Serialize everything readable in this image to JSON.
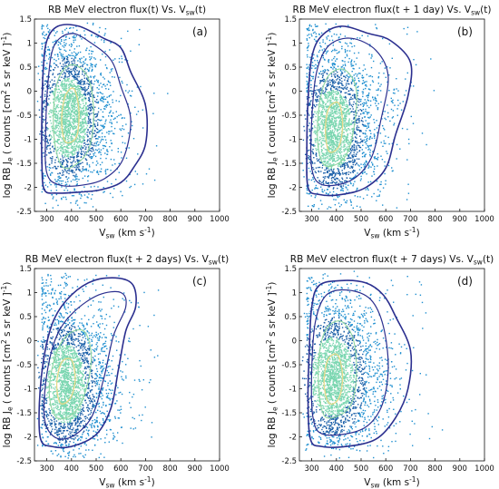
{
  "chart_data": [
    {
      "type": "scatter",
      "panel_label": "(a)",
      "title": {
        "main": "RB MeV electron flux(t) Vs. V",
        "sub": "sw",
        "tail": "(t)"
      },
      "xlabel": {
        "main": "V",
        "sub": "sw",
        "tail": " (km s",
        "sup": "-1",
        "close": ")"
      },
      "ylabel": {
        "pre": "log RB J",
        "sub": "e",
        "mid": " ( counts [cm",
        "sup1": "2",
        "mid2": " s sr keV ]",
        "sup2": "-1",
        "close": ")"
      },
      "xlim": [
        250,
        1000
      ],
      "ylim": [
        -2.5,
        1.5
      ],
      "xticks": [
        300,
        400,
        500,
        600,
        700,
        800,
        900,
        1000
      ],
      "yticks": [
        -2.5,
        -2,
        -1.5,
        -1,
        -0.5,
        0,
        0.5,
        1,
        1.5
      ],
      "density": {
        "peak_x": 385,
        "peak_y": -0.55,
        "spread_x": 75,
        "spread_y": 0.75
      },
      "contours": {
        "outer": [
          [
            340,
            -2.12
          ],
          [
            290,
            -2.05
          ],
          [
            280,
            -1.5
          ],
          [
            280,
            -0.5
          ],
          [
            285,
            0.4
          ],
          [
            300,
            1.05
          ],
          [
            345,
            1.35
          ],
          [
            430,
            1.35
          ],
          [
            530,
            1.1
          ],
          [
            600,
            0.9
          ],
          [
            640,
            0.4
          ],
          [
            700,
            -0.3
          ],
          [
            700,
            -1.1
          ],
          [
            650,
            -1.6
          ],
          [
            600,
            -1.9
          ],
          [
            520,
            -2.05
          ],
          [
            430,
            -2.1
          ]
        ],
        "mid": [
          [
            350,
            -1.95
          ],
          [
            300,
            -1.7
          ],
          [
            295,
            -0.9
          ],
          [
            305,
            0.2
          ],
          [
            330,
            0.95
          ],
          [
            400,
            1.2
          ],
          [
            480,
            1.0
          ],
          [
            560,
            0.65
          ],
          [
            600,
            0.1
          ],
          [
            640,
            -0.6
          ],
          [
            610,
            -1.4
          ],
          [
            540,
            -1.8
          ],
          [
            450,
            -1.95
          ]
        ],
        "inner": [
          [
            360,
            -1.55
          ],
          [
            330,
            -1.0
          ],
          [
            330,
            -0.2
          ],
          [
            355,
            0.35
          ],
          [
            410,
            0.55
          ],
          [
            470,
            0.25
          ],
          [
            490,
            -0.5
          ],
          [
            470,
            -1.2
          ],
          [
            410,
            -1.55
          ]
        ],
        "core": [
          [
            375,
            -1.05
          ],
          [
            360,
            -0.6
          ],
          [
            375,
            -0.1
          ],
          [
            410,
            0.05
          ],
          [
            430,
            -0.4
          ],
          [
            420,
            -0.95
          ]
        ]
      }
    },
    {
      "type": "scatter",
      "panel_label": "(b)",
      "title": {
        "main": "RB MeV electron flux(t + 1 day) Vs. V",
        "sub": "sw",
        "tail": "(t)"
      },
      "xlabel": {
        "main": "V",
        "sub": "sw",
        "tail": " (km s",
        "sup": "-1",
        "close": ")"
      },
      "ylabel": {
        "pre": "log RB J",
        "sub": "e",
        "mid": " ( counts [cm",
        "sup1": "2",
        "mid2": " s sr keV ]",
        "sup2": "-1",
        "close": ")"
      },
      "xlim": [
        250,
        1000
      ],
      "ylim": [
        -2.5,
        1.5
      ],
      "xticks": [
        300,
        400,
        500,
        600,
        700,
        800,
        900,
        1000
      ],
      "yticks": [
        -2.5,
        -2,
        -1.5,
        -1,
        -0.5,
        0,
        0.5,
        1,
        1.5
      ],
      "density": {
        "peak_x": 385,
        "peak_y": -0.8,
        "spread_x": 75,
        "spread_y": 0.75
      },
      "contours": {
        "outer": [
          [
            330,
            -2.15
          ],
          [
            285,
            -2.0
          ],
          [
            280,
            -1.2
          ],
          [
            285,
            -0.2
          ],
          [
            300,
            0.7
          ],
          [
            340,
            1.15
          ],
          [
            420,
            1.35
          ],
          [
            530,
            1.2
          ],
          [
            620,
            1.05
          ],
          [
            700,
            0.6
          ],
          [
            690,
            -0.1
          ],
          [
            640,
            -0.9
          ],
          [
            600,
            -1.6
          ],
          [
            520,
            -2.0
          ],
          [
            420,
            -2.15
          ]
        ],
        "mid": [
          [
            345,
            -1.95
          ],
          [
            300,
            -1.6
          ],
          [
            300,
            -0.6
          ],
          [
            320,
            0.4
          ],
          [
            370,
            0.95
          ],
          [
            460,
            1.1
          ],
          [
            560,
            0.85
          ],
          [
            610,
            0.3
          ],
          [
            580,
            -0.6
          ],
          [
            540,
            -1.4
          ],
          [
            460,
            -1.85
          ]
        ],
        "inner": [
          [
            355,
            -1.55
          ],
          [
            325,
            -1.1
          ],
          [
            330,
            -0.3
          ],
          [
            365,
            0.3
          ],
          [
            430,
            0.45
          ],
          [
            480,
            0.05
          ],
          [
            470,
            -0.8
          ],
          [
            430,
            -1.4
          ]
        ],
        "core": [
          [
            370,
            -1.25
          ],
          [
            355,
            -0.8
          ],
          [
            370,
            -0.35
          ],
          [
            410,
            -0.25
          ],
          [
            425,
            -0.7
          ],
          [
            410,
            -1.15
          ]
        ]
      }
    },
    {
      "type": "scatter",
      "panel_label": "(c)",
      "title": {
        "main": "RB MeV electron flux(t + 2 days) Vs. V",
        "sub": "sw",
        "tail": "(t)"
      },
      "xlabel": {
        "main": "V",
        "sub": "sw",
        "tail": " (km s",
        "sup": "-1",
        "close": ")"
      },
      "ylabel": {
        "pre": "log RB J",
        "sub": "e",
        "mid": " ( counts [cm",
        "sup1": "2",
        "mid2": " s sr keV ]",
        "sup2": "-1",
        "close": ")"
      },
      "xlim": [
        250,
        1000
      ],
      "ylim": [
        -2.5,
        1.5
      ],
      "xticks": [
        300,
        400,
        500,
        600,
        700,
        800,
        900,
        1000
      ],
      "yticks": [
        -2.5,
        -2,
        -1.5,
        -1,
        -0.5,
        0,
        0.5,
        1,
        1.5
      ],
      "density": {
        "peak_x": 375,
        "peak_y": -0.9,
        "spread_x": 75,
        "spread_y": 0.75
      },
      "contours": {
        "outer": [
          [
            320,
            -2.2
          ],
          [
            275,
            -2.05
          ],
          [
            270,
            -1.3
          ],
          [
            290,
            -0.3
          ],
          [
            330,
            0.45
          ],
          [
            400,
            0.95
          ],
          [
            490,
            1.25
          ],
          [
            590,
            1.3
          ],
          [
            650,
            1.15
          ],
          [
            660,
            0.7
          ],
          [
            620,
            0.2
          ],
          [
            590,
            -0.6
          ],
          [
            560,
            -1.4
          ],
          [
            500,
            -1.95
          ],
          [
            400,
            -2.2
          ]
        ],
        "mid": [
          [
            330,
            -2.0
          ],
          [
            290,
            -1.6
          ],
          [
            300,
            -0.7
          ],
          [
            340,
            0.1
          ],
          [
            410,
            0.6
          ],
          [
            510,
            0.95
          ],
          [
            600,
            1.0
          ],
          [
            620,
            0.7
          ],
          [
            570,
            0.1
          ],
          [
            530,
            -0.8
          ],
          [
            480,
            -1.6
          ],
          [
            400,
            -2.0
          ]
        ],
        "inner": [
          [
            340,
            -1.6
          ],
          [
            310,
            -1.1
          ],
          [
            330,
            -0.4
          ],
          [
            380,
            0.1
          ],
          [
            450,
            0.2
          ],
          [
            480,
            -0.3
          ],
          [
            460,
            -1.0
          ],
          [
            410,
            -1.5
          ]
        ],
        "core": [
          [
            355,
            -1.3
          ],
          [
            340,
            -0.9
          ],
          [
            360,
            -0.45
          ],
          [
            400,
            -0.4
          ],
          [
            415,
            -0.8
          ],
          [
            395,
            -1.2
          ]
        ]
      }
    },
    {
      "type": "scatter",
      "panel_label": "(d)",
      "title": {
        "main": "RB MeV electron flux(t + 7 days) Vs. V",
        "sub": "sw",
        "tail": "(t)"
      },
      "xlabel": {
        "main": "V",
        "sub": "sw",
        "tail": " (km s",
        "sup": "-1",
        "close": ")"
      },
      "ylabel": {
        "pre": "log RB J",
        "sub": "e",
        "mid": " ( counts [cm",
        "sup1": "2",
        "mid2": " s sr keV ]",
        "sup2": "-1",
        "close": ")"
      },
      "xlim": [
        250,
        1000
      ],
      "ylim": [
        -2.5,
        1.5
      ],
      "xticks": [
        300,
        400,
        500,
        600,
        700,
        800,
        900,
        1000
      ],
      "yticks": [
        -2.5,
        -2,
        -1.5,
        -1,
        -0.5,
        0,
        0.5,
        1,
        1.5
      ],
      "density": {
        "peak_x": 385,
        "peak_y": -0.75,
        "spread_x": 80,
        "spread_y": 0.75
      },
      "contours": {
        "outer": [
          [
            340,
            -2.2
          ],
          [
            295,
            -2.05
          ],
          [
            285,
            -1.2
          ],
          [
            290,
            -0.2
          ],
          [
            300,
            0.7
          ],
          [
            330,
            1.15
          ],
          [
            420,
            1.25
          ],
          [
            520,
            1.2
          ],
          [
            590,
            0.95
          ],
          [
            640,
            0.5
          ],
          [
            700,
            -0.2
          ],
          [
            690,
            -1.0
          ],
          [
            640,
            -1.6
          ],
          [
            560,
            -2.05
          ],
          [
            440,
            -2.2
          ]
        ],
        "mid": [
          [
            350,
            -1.95
          ],
          [
            305,
            -1.6
          ],
          [
            300,
            -0.6
          ],
          [
            315,
            0.4
          ],
          [
            360,
            0.95
          ],
          [
            450,
            1.05
          ],
          [
            540,
            0.85
          ],
          [
            590,
            0.3
          ],
          [
            610,
            -0.6
          ],
          [
            580,
            -1.4
          ],
          [
            500,
            -1.85
          ]
        ],
        "inner": [
          [
            360,
            -1.6
          ],
          [
            330,
            -1.1
          ],
          [
            330,
            -0.3
          ],
          [
            360,
            0.25
          ],
          [
            420,
            0.4
          ],
          [
            470,
            0.0
          ],
          [
            480,
            -0.8
          ],
          [
            450,
            -1.4
          ]
        ],
        "core": [
          [
            370,
            -1.3
          ],
          [
            350,
            -0.9
          ],
          [
            365,
            -0.4
          ],
          [
            405,
            -0.3
          ],
          [
            425,
            -0.75
          ],
          [
            410,
            -1.2
          ]
        ]
      }
    }
  ],
  "colors": {
    "contour": "#2b2f8f",
    "core_contour": "#e8d98a",
    "inner_contour": "#8fd6a0",
    "point_low": "#1f8fd0",
    "point_mid": "#1a5fa8",
    "point_high": "#7ad6b0"
  }
}
